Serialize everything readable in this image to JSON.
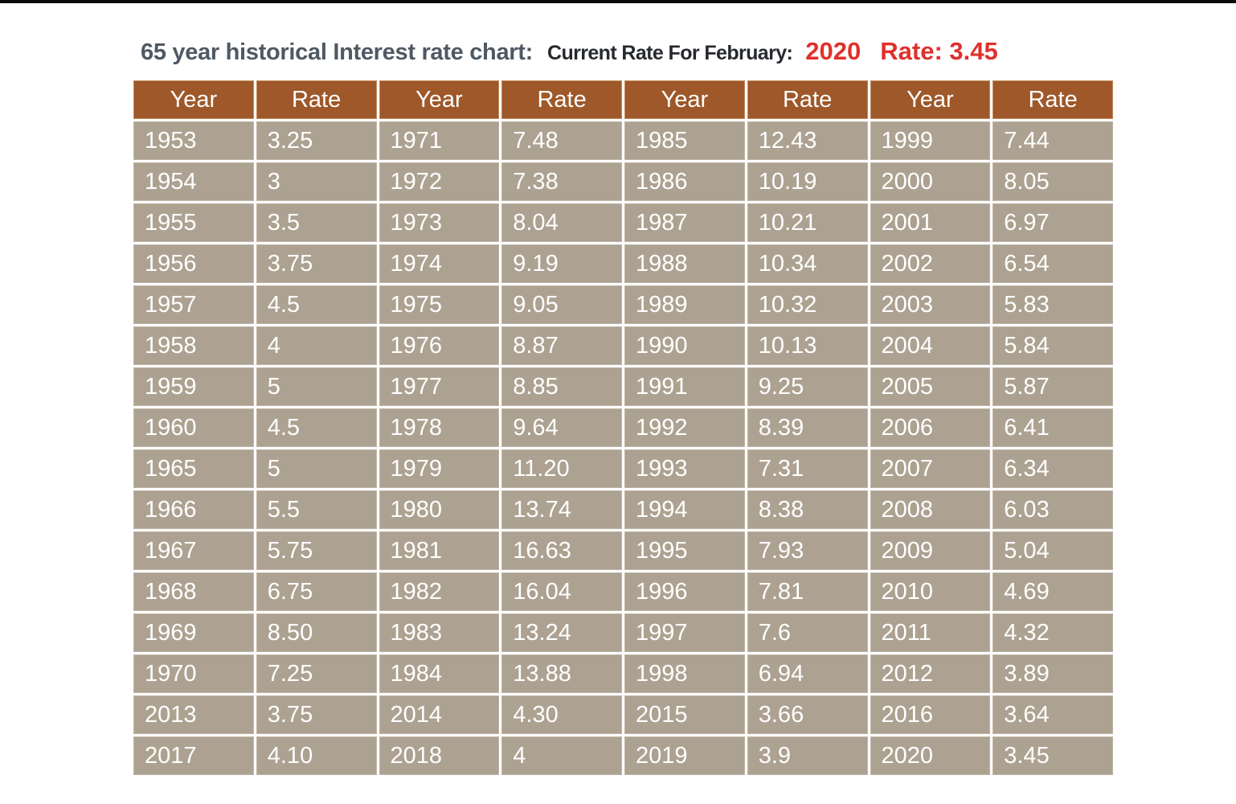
{
  "page": {
    "title_main": "65 year historical Interest rate chart:",
    "current_rate_label": "Current Rate For February:",
    "current_year": "2020",
    "current_rate": "Rate: 3.45"
  },
  "colors": {
    "top_bar": "#0b0b0b",
    "title_color": "#4e5964",
    "current_label_color": "#26292e",
    "highlight_red": "#e0302c",
    "header_bg": "#9e5829",
    "header_border": "#c28a5c",
    "cell_bg": "#ada291",
    "cell_border": "#beb5a6",
    "cell_text": "#ffffff"
  },
  "table": {
    "column_headers": [
      "Year",
      "Rate",
      "Year",
      "Rate",
      "Year",
      "Rate",
      "Year",
      "Rate"
    ],
    "rows": [
      [
        "1953",
        "3.25",
        "1971",
        "7.48",
        "1985",
        "12.43",
        "1999",
        "7.44"
      ],
      [
        "1954",
        "3",
        "1972",
        "7.38",
        "1986",
        "10.19",
        "2000",
        "8.05"
      ],
      [
        "1955",
        "3.5",
        "1973",
        "8.04",
        "1987",
        "10.21",
        "2001",
        "6.97"
      ],
      [
        "1956",
        "3.75",
        "1974",
        "9.19",
        "1988",
        "10.34",
        "2002",
        "6.54"
      ],
      [
        "1957",
        "4.5",
        "1975",
        "9.05",
        "1989",
        "10.32",
        "2003",
        "5.83"
      ],
      [
        "1958",
        "4",
        "1976",
        "8.87",
        "1990",
        "10.13",
        "2004",
        "5.84"
      ],
      [
        "1959",
        "5",
        "1977",
        "8.85",
        "1991",
        "9.25",
        "2005",
        "5.87"
      ],
      [
        "1960",
        "4.5",
        "1978",
        "9.64",
        "1992",
        "8.39",
        "2006",
        "6.41"
      ],
      [
        "1965",
        "5",
        "1979",
        "11.20",
        "1993",
        "7.31",
        "2007",
        "6.34"
      ],
      [
        "1966",
        "5.5",
        "1980",
        "13.74",
        "1994",
        "8.38",
        "2008",
        "6.03"
      ],
      [
        "1967",
        "5.75",
        "1981",
        "16.63",
        "1995",
        "7.93",
        "2009",
        "5.04"
      ],
      [
        "1968",
        "6.75",
        "1982",
        "16.04",
        "1996",
        "7.81",
        "2010",
        "4.69"
      ],
      [
        "1969",
        "8.50",
        "1983",
        "13.24",
        "1997",
        "7.6",
        "2011",
        "4.32"
      ],
      [
        "1970",
        "7.25",
        "1984",
        "13.88",
        "1998",
        "6.94",
        "2012",
        "3.89"
      ],
      [
        "2013",
        "3.75",
        "2014",
        "4.30",
        "2015",
        "3.66",
        "2016",
        "3.64"
      ],
      [
        "2017",
        "4.10",
        "2018",
        "4",
        "2019",
        "3.9",
        "2020",
        "3.45"
      ]
    ]
  },
  "chart_data": {
    "type": "table",
    "title": "65 year historical Interest rate chart",
    "annotation": {
      "label": "Current Rate For February:",
      "year": "2020",
      "rate": 3.45
    },
    "columns": [
      "Year",
      "Rate"
    ],
    "years": [
      1953,
      1954,
      1955,
      1956,
      1957,
      1958,
      1959,
      1960,
      1965,
      1966,
      1967,
      1968,
      1969,
      1970,
      1971,
      1972,
      1973,
      1974,
      1975,
      1976,
      1977,
      1978,
      1979,
      1980,
      1981,
      1982,
      1983,
      1984,
      1985,
      1986,
      1987,
      1988,
      1989,
      1990,
      1991,
      1992,
      1993,
      1994,
      1995,
      1996,
      1997,
      1998,
      1999,
      2000,
      2001,
      2002,
      2003,
      2004,
      2005,
      2006,
      2007,
      2008,
      2009,
      2010,
      2011,
      2012,
      2013,
      2014,
      2015,
      2016,
      2017,
      2018,
      2019,
      2020
    ],
    "rates": [
      3.25,
      3,
      3.5,
      3.75,
      4.5,
      4,
      5,
      4.5,
      5,
      5.5,
      5.75,
      6.75,
      8.5,
      7.25,
      7.48,
      7.38,
      8.04,
      9.19,
      9.05,
      8.87,
      8.85,
      9.64,
      11.2,
      13.74,
      16.63,
      16.04,
      13.24,
      13.88,
      12.43,
      10.19,
      10.21,
      10.34,
      10.32,
      10.13,
      9.25,
      8.39,
      7.31,
      8.38,
      7.93,
      7.81,
      7.6,
      6.94,
      7.44,
      8.05,
      6.97,
      6.54,
      5.83,
      5.84,
      5.87,
      6.41,
      6.34,
      6.03,
      5.04,
      4.69,
      4.32,
      3.89,
      3.75,
      4.3,
      3.66,
      3.64,
      4.1,
      4,
      3.9,
      3.45
    ]
  }
}
